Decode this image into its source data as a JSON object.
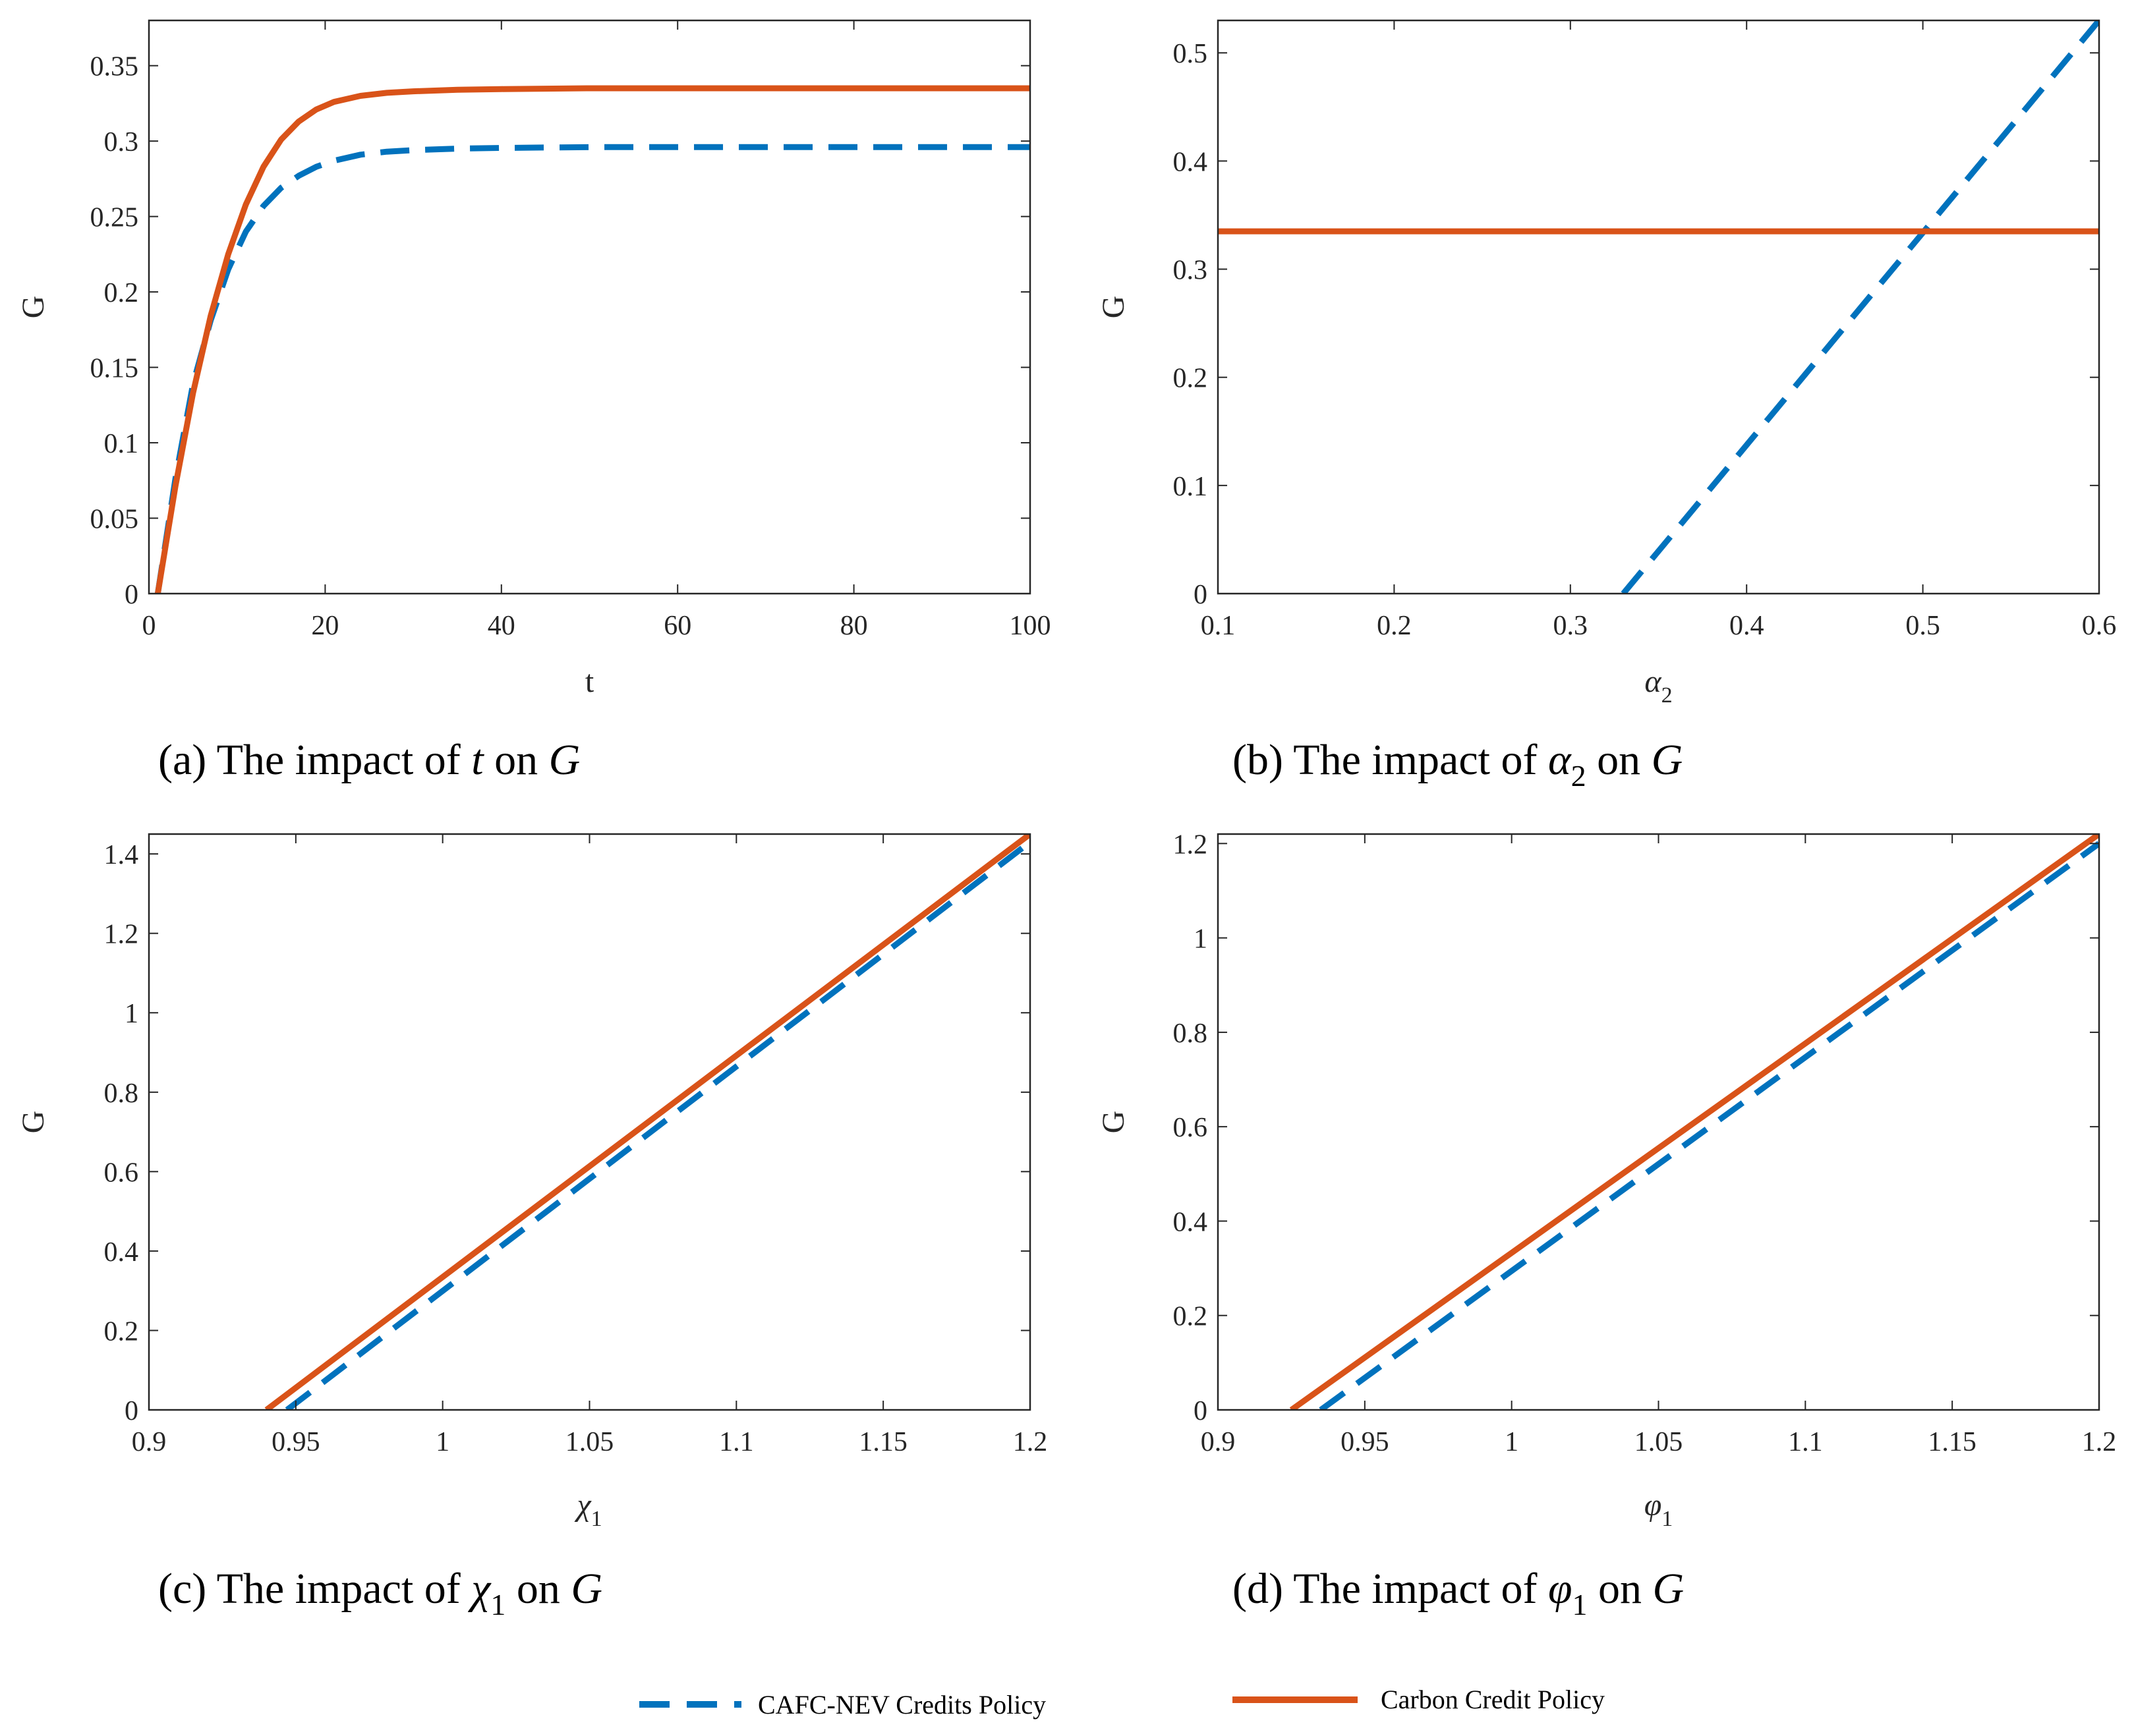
{
  "colors": {
    "cafc": "#0072BD",
    "carbon": "#D95319",
    "axis": "#262626"
  },
  "legend": {
    "cafc": "CAFC-NEV Credits Policy",
    "carbon": "Carbon Credit Policy"
  },
  "chart_data": [
    {
      "id": "a",
      "type": "line",
      "caption": {
        "tag": "(a)",
        "prefix": "The impact of",
        "sym": "t",
        "sub": "",
        "on": "on",
        "target": "G"
      },
      "xlabel": {
        "sym": "t",
        "sub": ""
      },
      "ylabel": "G",
      "xlim": [
        0,
        100
      ],
      "ylim": [
        0,
        0.38
      ],
      "xticks": [
        0,
        20,
        40,
        60,
        80,
        100
      ],
      "xtick_labels": [
        "0",
        "20",
        "40",
        "60",
        "80",
        "100"
      ],
      "yticks": [
        0,
        0.05,
        0.1,
        0.15,
        0.2,
        0.25,
        0.3,
        0.35
      ],
      "ytick_labels": [
        "0",
        "0.05",
        "0.1",
        "0.15",
        "0.2",
        "0.25",
        "0.3",
        "0.35"
      ],
      "series": [
        {
          "name": "CAFC-NEV Credits Policy",
          "style": "dashed",
          "color": "#0072BD",
          "x": [
            1,
            3,
            5,
            7,
            9,
            11,
            13,
            15,
            17,
            19,
            21,
            24,
            27,
            30,
            35,
            40,
            50,
            60,
            70,
            80,
            90,
            100
          ],
          "y": [
            0,
            0.076,
            0.139,
            0.181,
            0.215,
            0.24,
            0.257,
            0.269,
            0.277,
            0.283,
            0.287,
            0.291,
            0.293,
            0.294,
            0.295,
            0.2955,
            0.296,
            0.296,
            0.296,
            0.296,
            0.296,
            0.296
          ]
        },
        {
          "name": "Carbon Credit Policy",
          "style": "solid",
          "color": "#D95319",
          "x": [
            1,
            3,
            5,
            7,
            9,
            11,
            13,
            15,
            17,
            19,
            21,
            24,
            27,
            30,
            35,
            40,
            50,
            60,
            70,
            80,
            90,
            100
          ],
          "y": [
            0,
            0.071,
            0.133,
            0.184,
            0.225,
            0.258,
            0.283,
            0.301,
            0.313,
            0.321,
            0.326,
            0.33,
            0.332,
            0.333,
            0.334,
            0.3345,
            0.335,
            0.335,
            0.335,
            0.335,
            0.335,
            0.335
          ]
        }
      ]
    },
    {
      "id": "b",
      "type": "line",
      "caption": {
        "tag": "(b)",
        "prefix": "The impact of",
        "sym": "α",
        "sub": "2",
        "on": "on",
        "target": "G"
      },
      "xlabel": {
        "sym": "α",
        "sub": "2"
      },
      "ylabel": "G",
      "xlim": [
        0.1,
        0.6
      ],
      "ylim": [
        0,
        0.53
      ],
      "xticks": [
        0.1,
        0.2,
        0.3,
        0.4,
        0.5,
        0.6
      ],
      "xtick_labels": [
        "0.1",
        "0.2",
        "0.3",
        "0.4",
        "0.5",
        "0.6"
      ],
      "yticks": [
        0,
        0.1,
        0.2,
        0.3,
        0.4,
        0.5
      ],
      "ytick_labels": [
        "0",
        "0.1",
        "0.2",
        "0.3",
        "0.4",
        "0.5"
      ],
      "series": [
        {
          "name": "CAFC-NEV Credits Policy",
          "style": "dashed",
          "color": "#0072BD",
          "x": [
            0.33,
            0.6
          ],
          "y": [
            0,
            0.53
          ]
        },
        {
          "name": "Carbon Credit Policy",
          "style": "solid",
          "color": "#D95319",
          "x": [
            0.1,
            0.6
          ],
          "y": [
            0.335,
            0.335
          ]
        }
      ]
    },
    {
      "id": "c",
      "type": "line",
      "caption": {
        "tag": "(c)",
        "prefix": "The impact of",
        "sym": "χ",
        "sub": "1",
        "on": "on",
        "target": "G"
      },
      "xlabel": {
        "sym": "χ",
        "sub": "1"
      },
      "ylabel": "G",
      "xlim": [
        0.9,
        1.2
      ],
      "ylim": [
        0,
        1.45
      ],
      "xticks": [
        0.9,
        0.95,
        1.0,
        1.05,
        1.1,
        1.15,
        1.2
      ],
      "xtick_labels": [
        "0.9",
        "0.95",
        "1",
        "1.05",
        "1.1",
        "1.15",
        "1.2"
      ],
      "yticks": [
        0,
        0.2,
        0.4,
        0.6,
        0.8,
        1.0,
        1.2,
        1.4
      ],
      "ytick_labels": [
        "0",
        "0.2",
        "0.4",
        "0.6",
        "0.8",
        "1",
        "1.2",
        "1.4"
      ],
      "series": [
        {
          "name": "CAFC-NEV Credits Policy",
          "style": "dashed",
          "color": "#0072BD",
          "x": [
            0.947,
            1.2
          ],
          "y": [
            0,
            1.43
          ]
        },
        {
          "name": "Carbon Credit Policy",
          "style": "solid",
          "color": "#D95319",
          "x": [
            0.94,
            1.2
          ],
          "y": [
            0,
            1.45
          ]
        }
      ]
    },
    {
      "id": "d",
      "type": "line",
      "caption": {
        "tag": "(d)",
        "prefix": "The impact of",
        "sym": "φ",
        "sub": "1",
        "on": "on",
        "target": "G"
      },
      "xlabel": {
        "sym": "φ",
        "sub": "1"
      },
      "ylabel": "G",
      "xlim": [
        0.9,
        1.2
      ],
      "ylim": [
        0,
        1.22
      ],
      "xticks": [
        0.9,
        0.95,
        1.0,
        1.05,
        1.1,
        1.15,
        1.2
      ],
      "xtick_labels": [
        "0.9",
        "0.95",
        "1",
        "1.05",
        "1.1",
        "1.15",
        "1.2"
      ],
      "yticks": [
        0,
        0.2,
        0.4,
        0.6,
        0.8,
        1.0,
        1.2
      ],
      "ytick_labels": [
        "0",
        "0.2",
        "0.4",
        "0.6",
        "0.8",
        "1",
        "1.2"
      ],
      "series": [
        {
          "name": "CAFC-NEV Credits Policy",
          "style": "dashed",
          "color": "#0072BD",
          "x": [
            0.935,
            1.2
          ],
          "y": [
            0,
            1.2
          ]
        },
        {
          "name": "Carbon Credit Policy",
          "style": "solid",
          "color": "#D95319",
          "x": [
            0.925,
            1.2
          ],
          "y": [
            0,
            1.22
          ]
        }
      ]
    }
  ]
}
